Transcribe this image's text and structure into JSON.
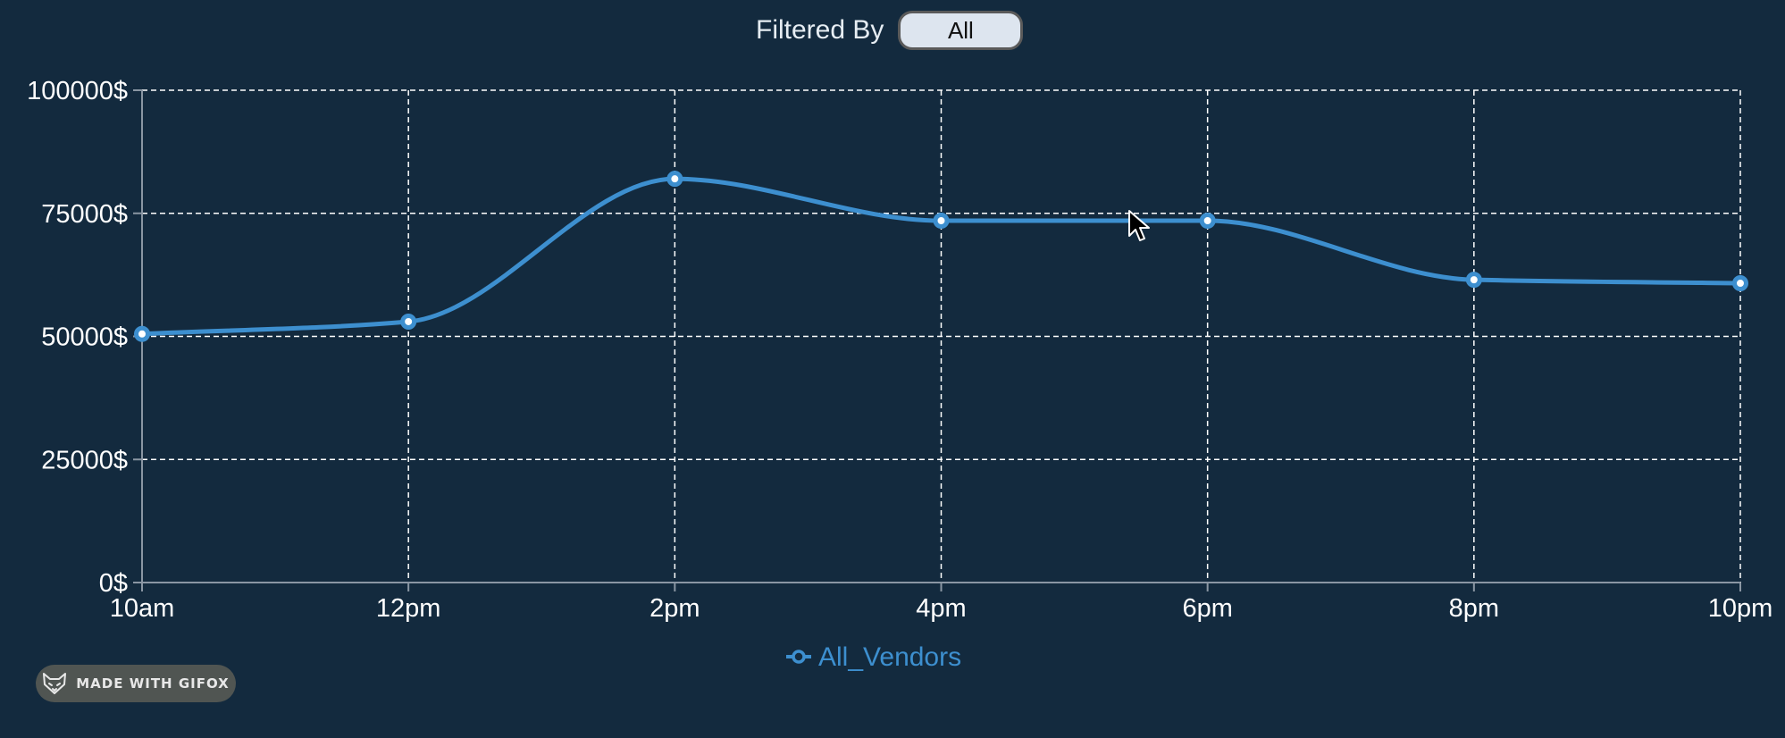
{
  "filter": {
    "label": "Filtered By",
    "selected": "All"
  },
  "badge": {
    "text": "MADE WITH GIFOX",
    "icon": "fox-icon"
  },
  "chart_data": {
    "type": "line",
    "x": [
      "10am",
      "12pm",
      "2pm",
      "4pm",
      "6pm",
      "8pm",
      "10pm"
    ],
    "series": [
      {
        "name": "All_Vendors",
        "color": "#3d8fcf",
        "values": [
          50500,
          53000,
          82000,
          73500,
          73500,
          61500,
          60800
        ]
      }
    ],
    "ylim": [
      0,
      100000
    ],
    "y_ticks": [
      0,
      25000,
      50000,
      75000,
      100000
    ],
    "y_tick_suffix": "$",
    "grid": true,
    "legend_position": "bottom-center",
    "colors": {
      "background": "#132a3e",
      "grid": "#ffffff",
      "axis": "#8a96a3"
    }
  }
}
